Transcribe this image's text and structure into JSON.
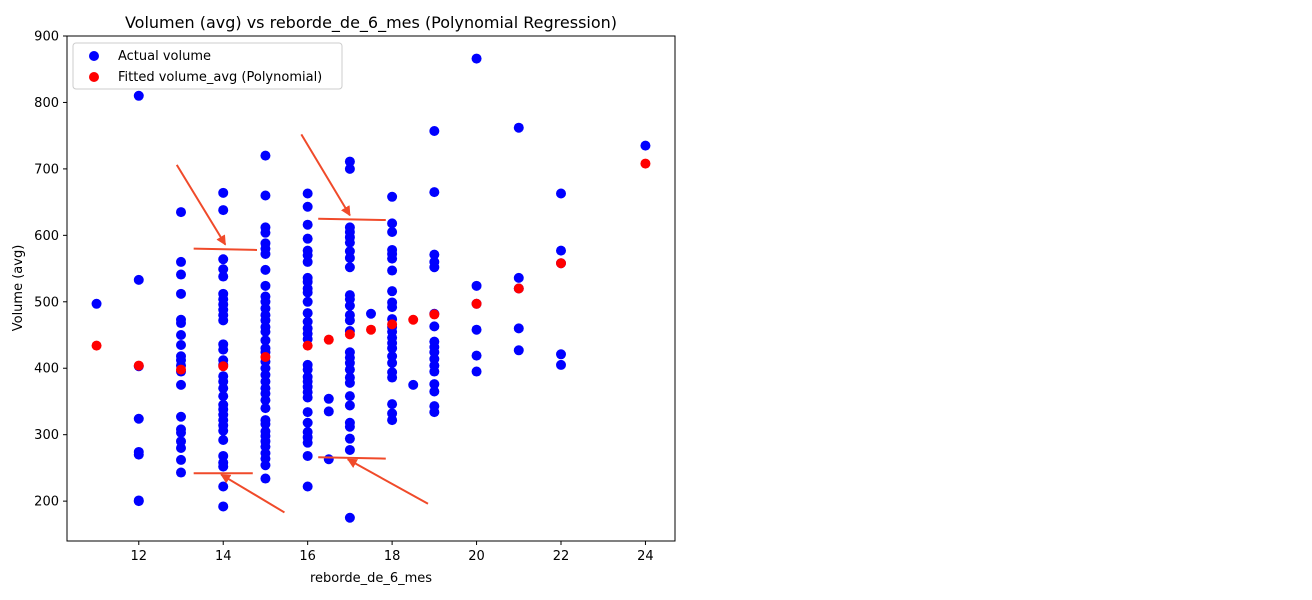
{
  "chart_data": {
    "type": "scatter",
    "title": "Volumen (avg) vs reborde_de_6_mes (Polynomial Regression)",
    "xlabel": "reborde_de_6_mes",
    "ylabel": "Volume (avg)",
    "xlim": [
      10.3,
      24.7
    ],
    "ylim": [
      140,
      900
    ],
    "xticks": [
      12,
      14,
      16,
      18,
      20,
      22,
      24
    ],
    "yticks": [
      200,
      300,
      400,
      500,
      600,
      700,
      800,
      900
    ],
    "legend_position": "upper-left",
    "series": [
      {
        "name": "Actual volume",
        "color": "#0000ff",
        "points": [
          [
            11,
            497
          ],
          [
            12,
            810
          ],
          [
            12,
            533
          ],
          [
            12,
            403
          ],
          [
            12,
            324
          ],
          [
            12,
            274
          ],
          [
            12,
            270
          ],
          [
            12,
            201
          ],
          [
            12,
            200
          ],
          [
            13,
            635
          ],
          [
            13,
            560
          ],
          [
            13,
            541
          ],
          [
            13,
            512
          ],
          [
            13,
            473
          ],
          [
            13,
            468
          ],
          [
            13,
            450
          ],
          [
            13,
            435
          ],
          [
            13,
            418
          ],
          [
            13,
            412
          ],
          [
            13,
            404
          ],
          [
            13,
            395
          ],
          [
            13,
            375
          ],
          [
            13,
            327
          ],
          [
            13,
            308
          ],
          [
            13,
            303
          ],
          [
            13,
            290
          ],
          [
            13,
            280
          ],
          [
            13,
            262
          ],
          [
            13,
            243
          ],
          [
            14,
            664
          ],
          [
            14,
            638
          ],
          [
            14,
            564
          ],
          [
            14,
            549
          ],
          [
            14,
            538
          ],
          [
            14,
            512
          ],
          [
            14,
            504
          ],
          [
            14,
            496
          ],
          [
            14,
            488
          ],
          [
            14,
            480
          ],
          [
            14,
            472
          ],
          [
            14,
            436
          ],
          [
            14,
            428
          ],
          [
            14,
            412
          ],
          [
            14,
            405
          ],
          [
            14,
            388
          ],
          [
            14,
            380
          ],
          [
            14,
            370
          ],
          [
            14,
            358
          ],
          [
            14,
            345
          ],
          [
            14,
            338
          ],
          [
            14,
            330
          ],
          [
            14,
            322
          ],
          [
            14,
            314
          ],
          [
            14,
            306
          ],
          [
            14,
            292
          ],
          [
            14,
            268
          ],
          [
            14,
            258
          ],
          [
            14,
            252
          ],
          [
            14,
            222
          ],
          [
            14,
            192
          ],
          [
            15,
            720
          ],
          [
            15,
            660
          ],
          [
            15,
            612
          ],
          [
            15,
            604
          ],
          [
            15,
            588
          ],
          [
            15,
            580
          ],
          [
            15,
            572
          ],
          [
            15,
            548
          ],
          [
            15,
            524
          ],
          [
            15,
            508
          ],
          [
            15,
            500
          ],
          [
            15,
            490
          ],
          [
            15,
            480
          ],
          [
            15,
            472
          ],
          [
            15,
            462
          ],
          [
            15,
            455
          ],
          [
            15,
            442
          ],
          [
            15,
            430
          ],
          [
            15,
            424
          ],
          [
            15,
            410
          ],
          [
            15,
            400
          ],
          [
            15,
            390
          ],
          [
            15,
            380
          ],
          [
            15,
            370
          ],
          [
            15,
            362
          ],
          [
            15,
            352
          ],
          [
            15,
            340
          ],
          [
            15,
            322
          ],
          [
            15,
            316
          ],
          [
            15,
            305
          ],
          [
            15,
            298
          ],
          [
            15,
            290
          ],
          [
            15,
            282
          ],
          [
            15,
            272
          ],
          [
            15,
            264
          ],
          [
            15,
            254
          ],
          [
            15,
            234
          ],
          [
            16,
            663
          ],
          [
            16,
            643
          ],
          [
            16,
            616
          ],
          [
            16,
            595
          ],
          [
            16,
            577
          ],
          [
            16,
            570
          ],
          [
            16,
            560
          ],
          [
            16,
            536
          ],
          [
            16,
            530
          ],
          [
            16,
            520
          ],
          [
            16,
            514
          ],
          [
            16,
            500
          ],
          [
            16,
            483
          ],
          [
            16,
            470
          ],
          [
            16,
            460
          ],
          [
            16,
            452
          ],
          [
            16,
            444
          ],
          [
            16,
            405
          ],
          [
            16,
            398
          ],
          [
            16,
            387
          ],
          [
            16,
            380
          ],
          [
            16,
            372
          ],
          [
            16,
            364
          ],
          [
            16,
            356
          ],
          [
            16,
            334
          ],
          [
            16,
            318
          ],
          [
            16,
            304
          ],
          [
            16,
            296
          ],
          [
            16,
            288
          ],
          [
            16,
            268
          ],
          [
            16,
            222
          ],
          [
            16.5,
            354
          ],
          [
            16.5,
            335
          ],
          [
            16.5,
            263
          ],
          [
            17,
            711
          ],
          [
            17,
            700
          ],
          [
            17,
            612
          ],
          [
            17,
            605
          ],
          [
            17,
            597
          ],
          [
            17,
            589
          ],
          [
            17,
            576
          ],
          [
            17,
            566
          ],
          [
            17,
            552
          ],
          [
            17,
            510
          ],
          [
            17,
            504
          ],
          [
            17,
            494
          ],
          [
            17,
            480
          ],
          [
            17,
            472
          ],
          [
            17,
            456
          ],
          [
            17,
            424
          ],
          [
            17,
            416
          ],
          [
            17,
            408
          ],
          [
            17,
            398
          ],
          [
            17,
            386
          ],
          [
            17,
            378
          ],
          [
            17,
            358
          ],
          [
            17,
            344
          ],
          [
            17,
            318
          ],
          [
            17,
            312
          ],
          [
            17,
            294
          ],
          [
            17,
            277
          ],
          [
            17,
            175
          ],
          [
            17.5,
            482
          ],
          [
            18,
            658
          ],
          [
            18,
            618
          ],
          [
            18,
            605
          ],
          [
            18,
            578
          ],
          [
            18,
            572
          ],
          [
            18,
            565
          ],
          [
            18,
            547
          ],
          [
            18,
            516
          ],
          [
            18,
            499
          ],
          [
            18,
            492
          ],
          [
            18,
            474
          ],
          [
            18,
            462
          ],
          [
            18,
            455
          ],
          [
            18,
            446
          ],
          [
            18,
            438
          ],
          [
            18,
            430
          ],
          [
            18,
            418
          ],
          [
            18,
            408
          ],
          [
            18,
            394
          ],
          [
            18,
            386
          ],
          [
            18,
            346
          ],
          [
            18,
            332
          ],
          [
            18,
            322
          ],
          [
            18.5,
            375
          ],
          [
            19,
            757
          ],
          [
            19,
            665
          ],
          [
            19,
            571
          ],
          [
            19,
            560
          ],
          [
            19,
            552
          ],
          [
            19,
            482
          ],
          [
            19,
            463
          ],
          [
            19,
            440
          ],
          [
            19,
            432
          ],
          [
            19,
            424
          ],
          [
            19,
            414
          ],
          [
            19,
            404
          ],
          [
            19,
            395
          ],
          [
            19,
            376
          ],
          [
            19,
            365
          ],
          [
            19,
            343
          ],
          [
            19,
            334
          ],
          [
            20,
            866
          ],
          [
            20,
            524
          ],
          [
            20,
            497
          ],
          [
            20,
            458
          ],
          [
            20,
            419
          ],
          [
            20,
            395
          ],
          [
            21,
            762
          ],
          [
            21,
            536
          ],
          [
            21,
            520
          ],
          [
            21,
            460
          ],
          [
            21,
            427
          ],
          [
            22,
            663
          ],
          [
            22,
            577
          ],
          [
            22,
            558
          ],
          [
            22,
            421
          ],
          [
            22,
            405
          ],
          [
            24,
            735
          ]
        ]
      },
      {
        "name": "Fitted volume_avg (Polynomial)",
        "color": "#ff0000",
        "points": [
          [
            11,
            434
          ],
          [
            12,
            404
          ],
          [
            13,
            398
          ],
          [
            14,
            403
          ],
          [
            15,
            417
          ],
          [
            16,
            434
          ],
          [
            16.5,
            443
          ],
          [
            17,
            451
          ],
          [
            17.5,
            458
          ],
          [
            18,
            466
          ],
          [
            18.5,
            473
          ],
          [
            19,
            481
          ],
          [
            20,
            497
          ],
          [
            21,
            520
          ],
          [
            22,
            558
          ],
          [
            24,
            708
          ]
        ]
      }
    ]
  },
  "annotations": {
    "color": "#f04a2a",
    "lines": [
      {
        "from": [
          13.3,
          580
        ],
        "to": [
          14.8,
          578
        ]
      },
      {
        "from": [
          16.25,
          625
        ],
        "to": [
          17.85,
          623
        ]
      },
      {
        "from": [
          13.3,
          242
        ],
        "to": [
          14.7,
          242
        ]
      },
      {
        "from": [
          16.25,
          266
        ],
        "to": [
          17.85,
          264
        ]
      }
    ],
    "arrows": [
      {
        "from": [
          12.9,
          706
        ],
        "to": [
          14.05,
          586
        ]
      },
      {
        "from": [
          15.85,
          752
        ],
        "to": [
          17.0,
          630
        ]
      },
      {
        "from": [
          15.45,
          183
        ],
        "to": [
          13.95,
          240
        ]
      },
      {
        "from": [
          18.85,
          196
        ],
        "to": [
          16.95,
          263
        ]
      }
    ]
  }
}
